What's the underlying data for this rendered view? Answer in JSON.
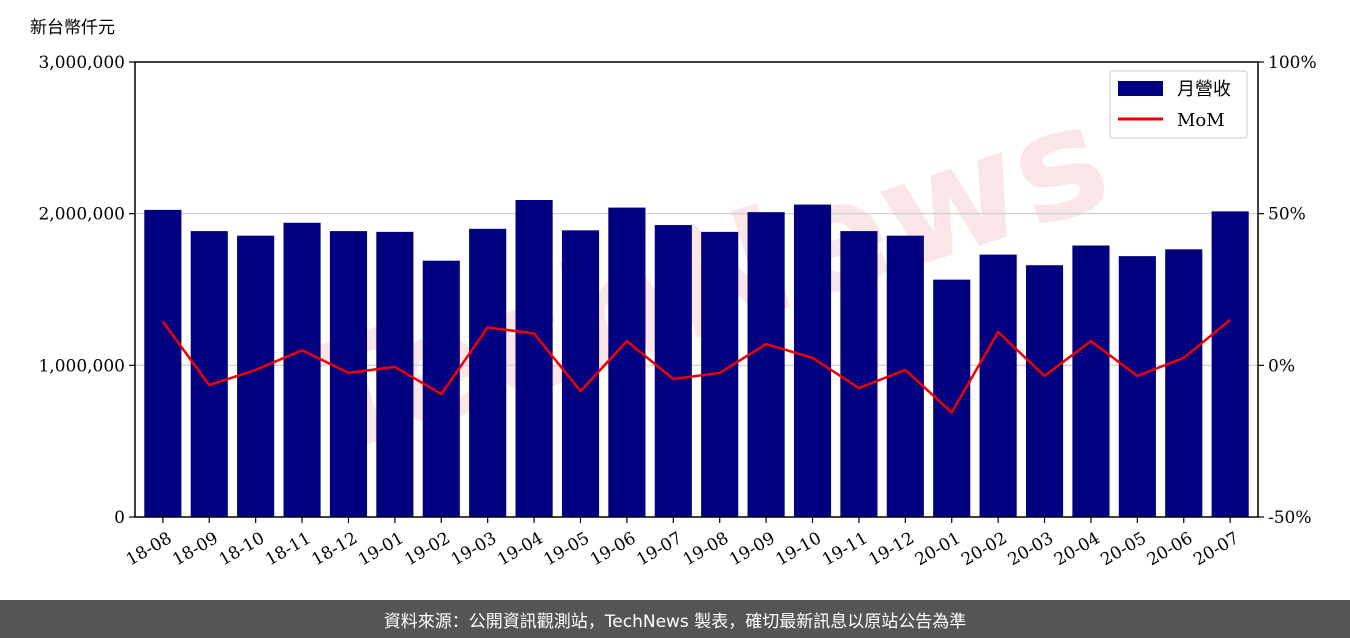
{
  "chart_data": {
    "type": "bar",
    "unit_label": "新台幣仟元",
    "categories": [
      "18-08",
      "18-09",
      "18-10",
      "18-11",
      "18-12",
      "19-01",
      "19-02",
      "19-03",
      "19-04",
      "19-05",
      "19-06",
      "19-07",
      "19-08",
      "19-09",
      "19-10",
      "19-11",
      "19-12",
      "20-01",
      "20-02",
      "20-03",
      "20-04",
      "20-05",
      "20-06",
      "20-07"
    ],
    "series": [
      {
        "name": "月營收",
        "type": "bar",
        "axis": "left",
        "color": "#000080",
        "values": [
          2025000,
          1885000,
          1855000,
          1940000,
          1885000,
          1880000,
          1690000,
          1900000,
          2090000,
          1890000,
          2040000,
          1925000,
          1880000,
          2010000,
          2060000,
          1885000,
          1855000,
          1565000,
          1730000,
          1660000,
          1790000,
          1720000,
          1765000,
          2015000
        ]
      },
      {
        "name": "MoM",
        "type": "line",
        "axis": "right",
        "color": "#ee0000",
        "values": [
          14.5,
          -6.5,
          -1.5,
          5.0,
          -2.5,
          -0.5,
          -9.5,
          12.5,
          10.5,
          -8.5,
          8.0,
          -4.5,
          -2.5,
          7.0,
          2.5,
          -7.5,
          -1.5,
          -15.5,
          11.0,
          -3.5,
          8.0,
          -3.5,
          2.5,
          15.0
        ]
      }
    ],
    "y_left": {
      "min": 0,
      "max": 3000000,
      "ticks": [
        0,
        1000000,
        2000000,
        3000000
      ],
      "tick_labels": [
        "0",
        "1,000,000",
        "2,000,000",
        "3,000,000"
      ]
    },
    "y_right": {
      "min": -50,
      "max": 100,
      "ticks": [
        -50,
        0,
        50,
        100
      ],
      "tick_labels": [
        "-50%",
        "0%",
        "50%",
        "100%"
      ]
    },
    "grid": "horizontal",
    "legend": "top-right"
  },
  "watermark": "TechNews",
  "footer": {
    "source_text": "資料來源：公開資訊觀測站，TechNews 製表，確切最新訊息以原站公告為準"
  },
  "colors": {
    "bar": "#000080",
    "line": "#ee0000",
    "footer_bg": "#555555",
    "watermark": "#f6c9c9"
  }
}
